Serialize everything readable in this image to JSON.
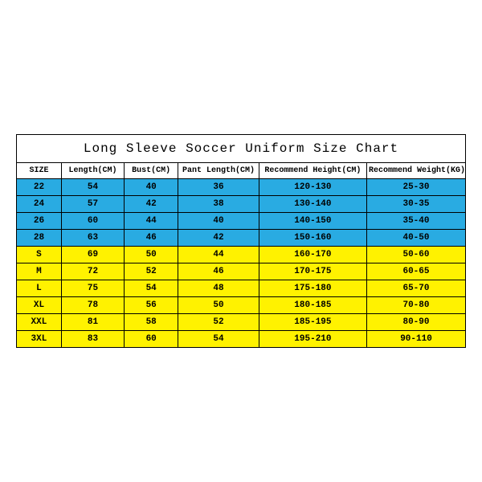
{
  "chart": {
    "type": "table",
    "title": "Long Sleeve Soccer Uniform Size Chart",
    "title_fontsize": 16,
    "header_fontsize": 10,
    "cell_fontsize": 11,
    "font_family": "Courier New",
    "border_color": "#000000",
    "background_color": "#ffffff",
    "group_colors": {
      "kids": "#29abe2",
      "adult": "#fff200"
    },
    "text_color": "#000000",
    "columns": [
      {
        "label": "SIZE",
        "width_pct": 10
      },
      {
        "label": "Length(CM)",
        "width_pct": 14
      },
      {
        "label": "Bust(CM)",
        "width_pct": 12
      },
      {
        "label": "Pant Length(CM)",
        "width_pct": 18
      },
      {
        "label": "Recommend Height(CM)",
        "width_pct": 24
      },
      {
        "label": "Recommend Weight(KG)",
        "width_pct": 22
      }
    ],
    "rows": [
      {
        "group": "kids",
        "cells": [
          "22",
          "54",
          "40",
          "36",
          "120-130",
          "25-30"
        ]
      },
      {
        "group": "kids",
        "cells": [
          "24",
          "57",
          "42",
          "38",
          "130-140",
          "30-35"
        ]
      },
      {
        "group": "kids",
        "cells": [
          "26",
          "60",
          "44",
          "40",
          "140-150",
          "35-40"
        ]
      },
      {
        "group": "kids",
        "cells": [
          "28",
          "63",
          "46",
          "42",
          "150-160",
          "40-50"
        ]
      },
      {
        "group": "adult",
        "cells": [
          "S",
          "69",
          "50",
          "44",
          "160-170",
          "50-60"
        ]
      },
      {
        "group": "adult",
        "cells": [
          "M",
          "72",
          "52",
          "46",
          "170-175",
          "60-65"
        ]
      },
      {
        "group": "adult",
        "cells": [
          "L",
          "75",
          "54",
          "48",
          "175-180",
          "65-70"
        ]
      },
      {
        "group": "adult",
        "cells": [
          "XL",
          "78",
          "56",
          "50",
          "180-185",
          "70-80"
        ]
      },
      {
        "group": "adult",
        "cells": [
          "XXL",
          "81",
          "58",
          "52",
          "185-195",
          "80-90"
        ]
      },
      {
        "group": "adult",
        "cells": [
          "3XL",
          "83",
          "60",
          "54",
          "195-210",
          "90-110"
        ]
      }
    ]
  }
}
